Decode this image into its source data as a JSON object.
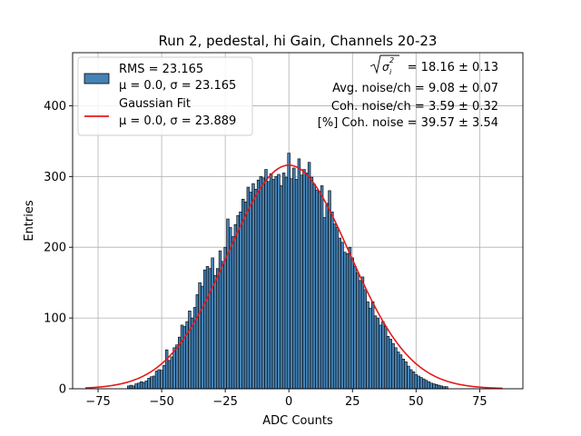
{
  "chart_data": {
    "type": "bar",
    "title": "Run 2, pedestal, hi Gain, Channels 20-23",
    "xlabel": "ADC Counts",
    "ylabel": "Entries",
    "xlim": [
      -85,
      92
    ],
    "ylim": [
      0,
      475
    ],
    "xticks": [
      -75,
      -50,
      -25,
      0,
      25,
      50,
      75
    ],
    "yticks": [
      0,
      100,
      200,
      300,
      400
    ],
    "xtick_labels": [
      "−75",
      "−50",
      "−25",
      "0",
      "25",
      "50",
      "75"
    ],
    "ytick_labels": [
      "0",
      "100",
      "200",
      "300",
      "400"
    ],
    "grid": true,
    "bar_color": "#4682b4",
    "fit_color": "#e41a1c",
    "bins": [
      {
        "x": -63,
        "y": 4
      },
      {
        "x": -62,
        "y": 5
      },
      {
        "x": -61,
        "y": 4
      },
      {
        "x": -60,
        "y": 7
      },
      {
        "x": -59,
        "y": 8
      },
      {
        "x": -58,
        "y": 10
      },
      {
        "x": -57,
        "y": 9
      },
      {
        "x": -56,
        "y": 11
      },
      {
        "x": -55,
        "y": 15
      },
      {
        "x": -54,
        "y": 17
      },
      {
        "x": -53,
        "y": 18
      },
      {
        "x": -52,
        "y": 25
      },
      {
        "x": -51,
        "y": 27
      },
      {
        "x": -50,
        "y": 26
      },
      {
        "x": -49,
        "y": 33
      },
      {
        "x": -48,
        "y": 55
      },
      {
        "x": -47,
        "y": 40
      },
      {
        "x": -46,
        "y": 45
      },
      {
        "x": -45,
        "y": 58
      },
      {
        "x": -44,
        "y": 62
      },
      {
        "x": -43,
        "y": 73
      },
      {
        "x": -42,
        "y": 90
      },
      {
        "x": -41,
        "y": 88
      },
      {
        "x": -40,
        "y": 95
      },
      {
        "x": -39,
        "y": 110
      },
      {
        "x": -38,
        "y": 100
      },
      {
        "x": -37,
        "y": 115
      },
      {
        "x": -36,
        "y": 133
      },
      {
        "x": -35,
        "y": 150
      },
      {
        "x": -34,
        "y": 145
      },
      {
        "x": -33,
        "y": 168
      },
      {
        "x": -32,
        "y": 173
      },
      {
        "x": -31,
        "y": 170
      },
      {
        "x": -30,
        "y": 185
      },
      {
        "x": -29,
        "y": 160
      },
      {
        "x": -28,
        "y": 170
      },
      {
        "x": -27,
        "y": 195
      },
      {
        "x": -26,
        "y": 180
      },
      {
        "x": -25,
        "y": 200
      },
      {
        "x": -24,
        "y": 240
      },
      {
        "x": -23,
        "y": 228
      },
      {
        "x": -22,
        "y": 215
      },
      {
        "x": -21,
        "y": 232
      },
      {
        "x": -20,
        "y": 245
      },
      {
        "x": -19,
        "y": 250
      },
      {
        "x": -18,
        "y": 268
      },
      {
        "x": -17,
        "y": 264
      },
      {
        "x": -16,
        "y": 285
      },
      {
        "x": -15,
        "y": 278
      },
      {
        "x": -14,
        "y": 290
      },
      {
        "x": -13,
        "y": 282
      },
      {
        "x": -12,
        "y": 295
      },
      {
        "x": -11,
        "y": 300
      },
      {
        "x": -10,
        "y": 298
      },
      {
        "x": -9,
        "y": 310
      },
      {
        "x": -8,
        "y": 293
      },
      {
        "x": -7,
        "y": 304
      },
      {
        "x": -6,
        "y": 296
      },
      {
        "x": -5,
        "y": 300
      },
      {
        "x": -4,
        "y": 303
      },
      {
        "x": -3,
        "y": 287
      },
      {
        "x": -2,
        "y": 305
      },
      {
        "x": -1,
        "y": 299
      },
      {
        "x": 0,
        "y": 333
      },
      {
        "x": 1,
        "y": 297
      },
      {
        "x": 2,
        "y": 312
      },
      {
        "x": 3,
        "y": 296
      },
      {
        "x": 4,
        "y": 325
      },
      {
        "x": 5,
        "y": 302
      },
      {
        "x": 6,
        "y": 310
      },
      {
        "x": 7,
        "y": 305
      },
      {
        "x": 8,
        "y": 320
      },
      {
        "x": 9,
        "y": 299
      },
      {
        "x": 10,
        "y": 289
      },
      {
        "x": 11,
        "y": 281
      },
      {
        "x": 12,
        "y": 279
      },
      {
        "x": 13,
        "y": 287
      },
      {
        "x": 14,
        "y": 242
      },
      {
        "x": 15,
        "y": 262
      },
      {
        "x": 16,
        "y": 280
      },
      {
        "x": 17,
        "y": 250
      },
      {
        "x": 18,
        "y": 233
      },
      {
        "x": 19,
        "y": 228
      },
      {
        "x": 20,
        "y": 213
      },
      {
        "x": 21,
        "y": 207
      },
      {
        "x": 22,
        "y": 193
      },
      {
        "x": 23,
        "y": 191
      },
      {
        "x": 24,
        "y": 200
      },
      {
        "x": 25,
        "y": 185
      },
      {
        "x": 26,
        "y": 173
      },
      {
        "x": 27,
        "y": 164
      },
      {
        "x": 28,
        "y": 153
      },
      {
        "x": 29,
        "y": 158
      },
      {
        "x": 30,
        "y": 140
      },
      {
        "x": 31,
        "y": 123
      },
      {
        "x": 32,
        "y": 114
      },
      {
        "x": 33,
        "y": 123
      },
      {
        "x": 34,
        "y": 103
      },
      {
        "x": 35,
        "y": 100
      },
      {
        "x": 36,
        "y": 90
      },
      {
        "x": 37,
        "y": 95
      },
      {
        "x": 38,
        "y": 88
      },
      {
        "x": 39,
        "y": 74
      },
      {
        "x": 40,
        "y": 70
      },
      {
        "x": 41,
        "y": 64
      },
      {
        "x": 42,
        "y": 58
      },
      {
        "x": 43,
        "y": 52
      },
      {
        "x": 44,
        "y": 48
      },
      {
        "x": 45,
        "y": 42
      },
      {
        "x": 46,
        "y": 38
      },
      {
        "x": 47,
        "y": 32
      },
      {
        "x": 48,
        "y": 27
      },
      {
        "x": 49,
        "y": 24
      },
      {
        "x": 50,
        "y": 20
      },
      {
        "x": 51,
        "y": 18
      },
      {
        "x": 52,
        "y": 16
      },
      {
        "x": 53,
        "y": 14
      },
      {
        "x": 54,
        "y": 12
      },
      {
        "x": 55,
        "y": 10
      },
      {
        "x": 56,
        "y": 8
      },
      {
        "x": 57,
        "y": 7
      },
      {
        "x": 58,
        "y": 6
      },
      {
        "x": 59,
        "y": 5
      },
      {
        "x": 60,
        "y": 4
      },
      {
        "x": 61,
        "y": 3
      },
      {
        "x": 62,
        "y": 3
      }
    ],
    "fit": {
      "mu": 0.0,
      "sigma": 23.889,
      "amplitude": 316,
      "x_range": [
        -80,
        84
      ]
    },
    "legend": {
      "entries": [
        {
          "label_line1": "RMS = 23.165",
          "label_line2": "μ = 0.0, σ = 23.165",
          "kind": "patch"
        },
        {
          "label_line1": "Gaussian Fit",
          "label_line2": "μ = 0.0, σ = 23.889",
          "kind": "line"
        }
      ]
    },
    "annotations": [
      {
        "text": "= 18.16 ± 0.13",
        "math": "sqrt-sigma-i2"
      },
      {
        "text": "Avg. noise/ch = 9.08 ± 0.07"
      },
      {
        "text": "Coh. noise/ch = 3.59 ± 0.32"
      },
      {
        "text": "[%] Coh. noise = 39.57 ± 3.54"
      }
    ]
  }
}
